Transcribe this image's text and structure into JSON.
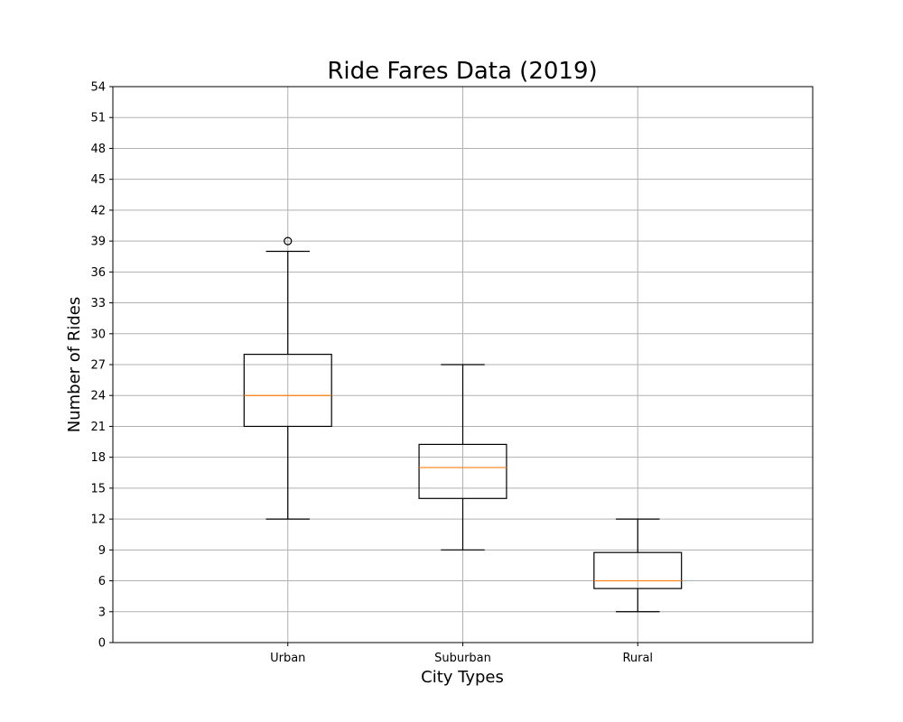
{
  "chart_data": {
    "type": "box",
    "title": "Ride Fares Data (2019)",
    "xlabel": "City Types",
    "ylabel": "Number of Rides",
    "ylim": [
      0,
      54
    ],
    "yticks": [
      0,
      3,
      6,
      9,
      12,
      15,
      18,
      21,
      24,
      27,
      30,
      33,
      36,
      39,
      42,
      45,
      48,
      51,
      54
    ],
    "grid": true,
    "categories": [
      "Urban",
      "Suburban",
      "Rural"
    ],
    "boxes": [
      {
        "category": "Urban",
        "whisker_low": 12,
        "q1": 21,
        "median": 24,
        "q3": 28,
        "whisker_high": 38,
        "outliers": [
          39
        ]
      },
      {
        "category": "Suburban",
        "whisker_low": 9,
        "q1": 14,
        "median": 17,
        "q3": 19.25,
        "whisker_high": 27,
        "outliers": []
      },
      {
        "category": "Rural",
        "whisker_low": 3,
        "q1": 5.25,
        "median": 6,
        "q3": 8.75,
        "whisker_high": 12,
        "outliers": []
      }
    ],
    "colors": {
      "box": "#000000",
      "median": "#ff7f0e",
      "grid": "#b0b0b0",
      "background": "#ffffff"
    }
  }
}
